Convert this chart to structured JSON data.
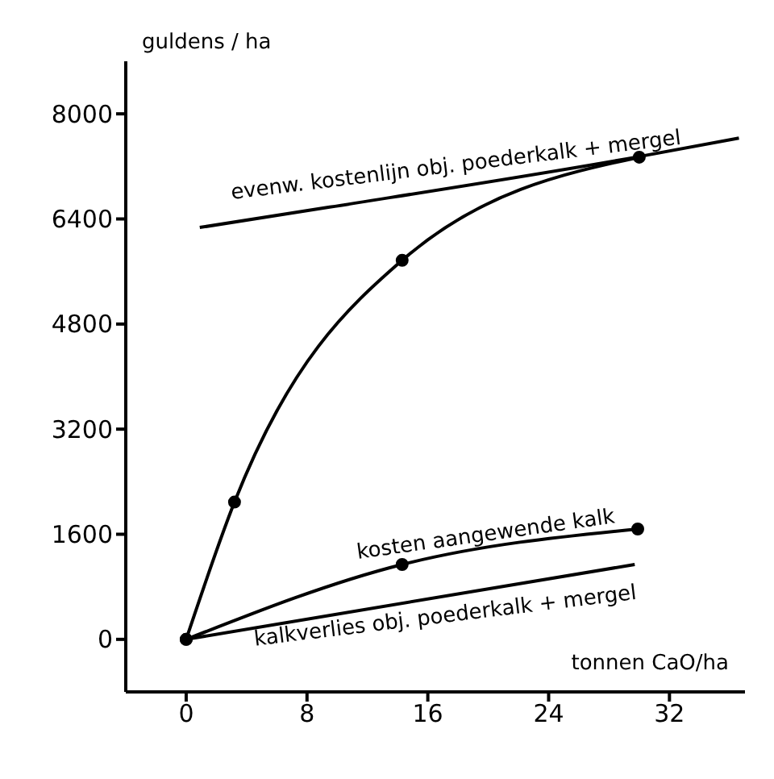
{
  "chart_data": {
    "type": "line",
    "xlabel": "tonnen CaO/ha",
    "ylabel": "guldens / ha",
    "xlim": [
      -4,
      37
    ],
    "ylim": [
      -800,
      8800
    ],
    "xticks": [
      0,
      8,
      16,
      24,
      32
    ],
    "yticks": [
      0,
      1600,
      3200,
      4800,
      6400,
      8000
    ],
    "grid": false,
    "legend": false,
    "series": [
      {
        "color": "#000000",
        "marker": "circle",
        "x": [
          0,
          3.2,
          14.3,
          30
        ],
        "values": [
          0,
          2090,
          5770,
          7340
        ]
      },
      {
        "color": "#000000",
        "marker": "none",
        "x": [
          0.9,
          9.5,
          30,
          36.6
        ],
        "values": [
          6270,
          6580,
          7350,
          7630
        ]
      },
      {
        "color": "#000000",
        "marker": "circle",
        "x": [
          0,
          14.3,
          29.9
        ],
        "values": [
          0,
          1140,
          1680
        ]
      },
      {
        "color": "#000000",
        "marker": "none",
        "x": [
          0,
          29.7
        ],
        "values": [
          0,
          1140
        ]
      }
    ],
    "annotations": [
      {
        "text": "evenw. kostenlijn obj. poederkalk + mergel",
        "x": 18,
        "y": 6950
      },
      {
        "text": "kosten aangewende kalk",
        "x": 20,
        "y": 1330
      },
      {
        "text": "kalkverlies obj. poederkalk + mergel",
        "x": 17,
        "y": 650
      }
    ]
  }
}
